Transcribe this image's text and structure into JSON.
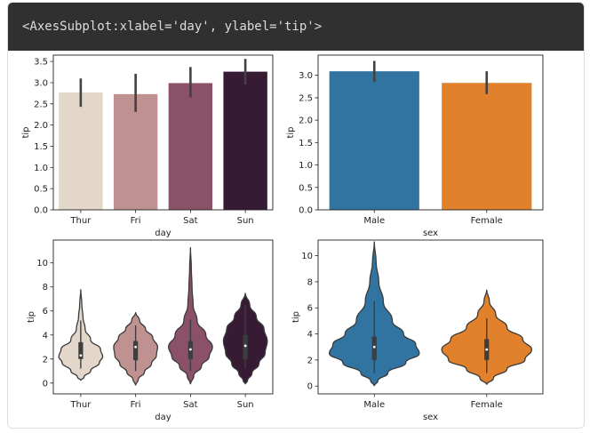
{
  "output": {
    "repr_text": "<AxesSubplot:xlabel='day', ylabel='tip'>"
  },
  "chart_data": [
    {
      "type": "bar",
      "xlabel": "day",
      "ylabel": "tip",
      "categories": [
        "Thur",
        "Fri",
        "Sat",
        "Sun"
      ],
      "values": [
        2.77,
        2.73,
        2.99,
        3.26
      ],
      "ci": [
        [
          2.43,
          3.1
        ],
        [
          2.31,
          3.21
        ],
        [
          2.65,
          3.37
        ],
        [
          2.96,
          3.56
        ]
      ],
      "colors": [
        "#e2d7c9",
        "#bf9190",
        "#8a5168",
        "#371b35"
      ],
      "ylim": [
        0,
        3.65
      ],
      "yticks": [
        "0.0",
        "0.5",
        "1.0",
        "1.5",
        "2.0",
        "2.5",
        "3.0",
        "3.5"
      ]
    },
    {
      "type": "bar",
      "xlabel": "sex",
      "ylabel": "tip",
      "categories": [
        "Male",
        "Female"
      ],
      "values": [
        3.09,
        2.83
      ],
      "ci": [
        [
          2.85,
          3.32
        ],
        [
          2.58,
          3.09
        ]
      ],
      "colors": [
        "#3274a1",
        "#e1812c"
      ],
      "ylim": [
        0,
        3.45
      ],
      "yticks": [
        "0.0",
        "0.5",
        "1.0",
        "1.5",
        "2.0",
        "2.5",
        "3.0"
      ]
    },
    {
      "type": "violin",
      "xlabel": "day",
      "ylabel": "tip",
      "categories": [
        "Thur",
        "Fri",
        "Sat",
        "Sun"
      ],
      "colors": [
        "#e2d7c9",
        "#bf9190",
        "#8a5168",
        "#371b35"
      ],
      "ylim": [
        -0.9,
        11.9
      ],
      "yticks": [
        "0",
        "2",
        "4",
        "6",
        "8",
        "10"
      ],
      "violins": [
        {
          "top": 7.8,
          "bottom": 0.2,
          "q1": 2.0,
          "median": 2.3,
          "q3": 3.4,
          "wlow": 1.2,
          "whigh": 5.2,
          "profile": [
            [
              7.8,
              0
            ],
            [
              6.5,
              0.05
            ],
            [
              5.5,
              0.1
            ],
            [
              4.5,
              0.2
            ],
            [
              3.6,
              0.45
            ],
            [
              2.8,
              0.9
            ],
            [
              2.2,
              1.0
            ],
            [
              1.7,
              0.85
            ],
            [
              1.0,
              0.45
            ],
            [
              0.5,
              0.15
            ],
            [
              0.2,
              0
            ]
          ]
        },
        {
          "top": 5.9,
          "bottom": -0.2,
          "q1": 1.9,
          "median": 3.0,
          "q3": 3.5,
          "wlow": 1.0,
          "whigh": 4.8,
          "profile": [
            [
              5.9,
              0
            ],
            [
              5.2,
              0.18
            ],
            [
              4.5,
              0.45
            ],
            [
              3.8,
              0.78
            ],
            [
              3.0,
              1.0
            ],
            [
              2.3,
              0.95
            ],
            [
              1.6,
              0.72
            ],
            [
              0.9,
              0.4
            ],
            [
              0.3,
              0.12
            ],
            [
              -0.2,
              0
            ]
          ]
        },
        {
          "top": 11.3,
          "bottom": -0.1,
          "q1": 2.0,
          "median": 2.8,
          "q3": 3.5,
          "wlow": 1.0,
          "whigh": 5.3,
          "profile": [
            [
              11.3,
              0
            ],
            [
              9.5,
              0.04
            ],
            [
              8.0,
              0.07
            ],
            [
              6.5,
              0.12
            ],
            [
              5.2,
              0.3
            ],
            [
              4.0,
              0.7
            ],
            [
              3.0,
              1.0
            ],
            [
              2.2,
              0.85
            ],
            [
              1.4,
              0.5
            ],
            [
              0.6,
              0.15
            ],
            [
              -0.1,
              0
            ]
          ]
        },
        {
          "top": 7.5,
          "bottom": -0.1,
          "q1": 2.0,
          "median": 3.1,
          "q3": 4.0,
          "wlow": 1.2,
          "whigh": 6.5,
          "profile": [
            [
              7.5,
              0
            ],
            [
              6.5,
              0.2
            ],
            [
              5.5,
              0.5
            ],
            [
              4.5,
              0.85
            ],
            [
              3.5,
              1.0
            ],
            [
              2.5,
              0.9
            ],
            [
              1.6,
              0.62
            ],
            [
              0.8,
              0.3
            ],
            [
              0.2,
              0.1
            ],
            [
              -0.1,
              0
            ]
          ]
        }
      ]
    },
    {
      "type": "violin",
      "xlabel": "sex",
      "ylabel": "tip",
      "categories": [
        "Male",
        "Female"
      ],
      "colors": [
        "#3274a1",
        "#e1812c"
      ],
      "ylim": [
        -0.6,
        11.2
      ],
      "yticks": [
        "0",
        "2",
        "4",
        "6",
        "8",
        "10"
      ],
      "violins": [
        {
          "top": 11.1,
          "bottom": 0.0,
          "q1": 2.0,
          "median": 3.0,
          "q3": 3.8,
          "wlow": 1.0,
          "whigh": 6.5,
          "profile": [
            [
              11.1,
              0
            ],
            [
              9.5,
              0.04
            ],
            [
              8.0,
              0.1
            ],
            [
              6.5,
              0.2
            ],
            [
              5.0,
              0.4
            ],
            [
              4.0,
              0.65
            ],
            [
              3.2,
              0.92
            ],
            [
              2.5,
              1.0
            ],
            [
              1.8,
              0.7
            ],
            [
              1.0,
              0.3
            ],
            [
              0.4,
              0.08
            ],
            [
              0.0,
              0
            ]
          ]
        },
        {
          "top": 7.4,
          "bottom": 0.1,
          "q1": 2.0,
          "median": 2.8,
          "q3": 3.6,
          "wlow": 1.0,
          "whigh": 5.2,
          "profile": [
            [
              7.4,
              0
            ],
            [
              6.5,
              0.06
            ],
            [
              5.5,
              0.2
            ],
            [
              4.5,
              0.45
            ],
            [
              3.6,
              0.8
            ],
            [
              2.8,
              1.0
            ],
            [
              2.0,
              0.85
            ],
            [
              1.3,
              0.45
            ],
            [
              0.6,
              0.15
            ],
            [
              0.1,
              0
            ]
          ]
        }
      ]
    }
  ]
}
